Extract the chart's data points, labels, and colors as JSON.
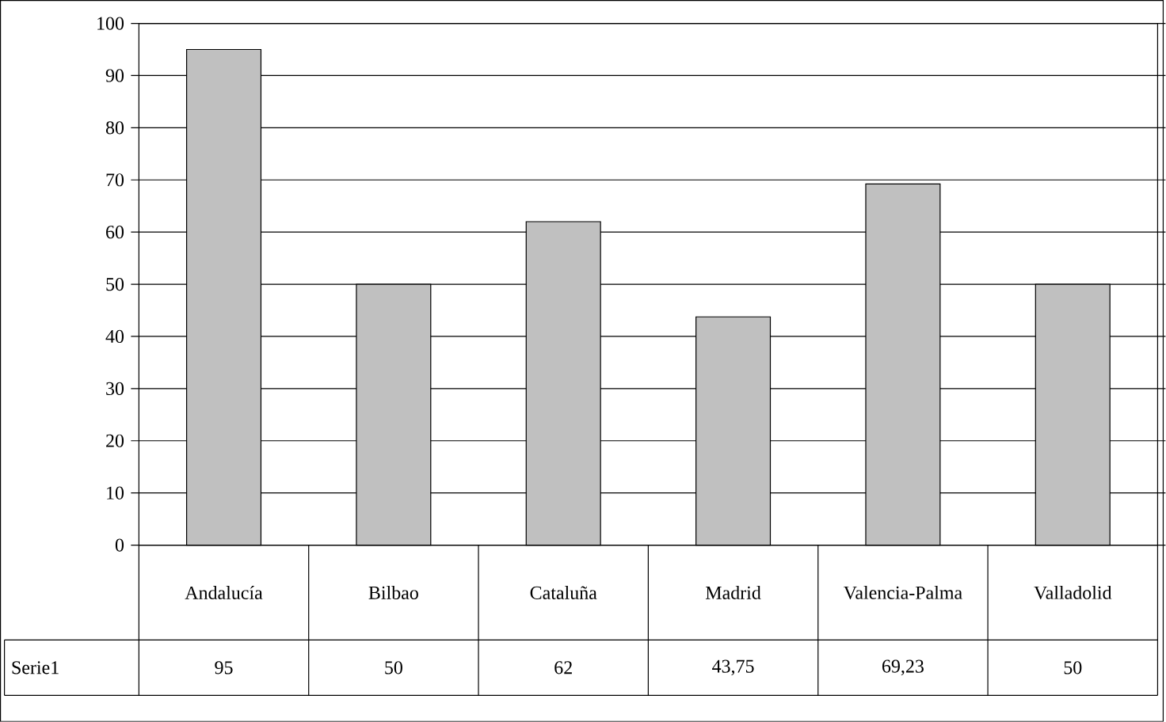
{
  "chart_data": {
    "type": "bar",
    "categories": [
      "Andalucía",
      "Bilbao",
      "Cataluña",
      "Madrid",
      "Valencia-Palma",
      "Valladolid"
    ],
    "series": [
      {
        "name": "Serie1",
        "color": "#c0c0c0",
        "values": [
          95,
          50,
          62,
          43.75,
          69.23,
          50
        ],
        "value_labels": [
          "95",
          "50",
          "62",
          "43,75",
          "69,23",
          "50"
        ]
      }
    ],
    "ylim": [
      0,
      100
    ],
    "yticks": [
      0,
      10,
      20,
      30,
      40,
      50,
      60,
      70,
      80,
      90,
      100
    ],
    "grid": "y",
    "legend": false
  }
}
